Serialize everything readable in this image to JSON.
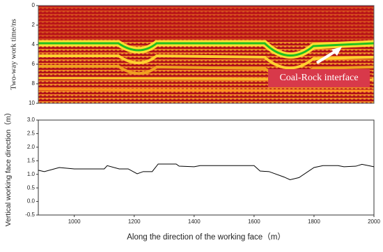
{
  "chart_data": [
    {
      "type": "radargram",
      "ylabel": "Two-way work time/ns",
      "ylim": [
        0,
        10
      ],
      "yticks": [
        0,
        2,
        4,
        6,
        8,
        10
      ],
      "y_reversed": true,
      "annotation": "Coal-Rock interface"
    },
    {
      "type": "line",
      "ylabel": "Vertical working face direction（m）",
      "xlabel": "Along the direction of the working face（m）",
      "x": [
        880,
        900,
        950,
        1000,
        1100,
        1110,
        1150,
        1180,
        1210,
        1230,
        1260,
        1280,
        1340,
        1350,
        1400,
        1420,
        1600,
        1620,
        1650,
        1700,
        1720,
        1750,
        1800,
        1830,
        1880,
        1900,
        1940,
        1960,
        2000
      ],
      "values": [
        1.15,
        1.1,
        1.25,
        1.2,
        1.2,
        1.32,
        1.2,
        1.2,
        1.02,
        1.1,
        1.1,
        1.38,
        1.38,
        1.3,
        1.28,
        1.32,
        1.32,
        1.12,
        1.1,
        0.9,
        0.8,
        0.88,
        1.25,
        1.32,
        1.32,
        1.28,
        1.3,
        1.37,
        1.28
      ],
      "color": "#000000",
      "xlim": [
        880,
        2000
      ],
      "xticks": [
        1000,
        1200,
        1400,
        1600,
        1800,
        2000
      ],
      "ylim": [
        -0.5,
        3.0
      ],
      "yticks": [
        {
          "value": -0.5,
          "label": "-0.5"
        },
        {
          "value": 0,
          "label": "0.0"
        },
        {
          "value": 0.5,
          "label": "0.5"
        },
        {
          "value": 1,
          "label": "1.0"
        },
        {
          "value": 1.5,
          "label": "1.5"
        },
        {
          "value": 2,
          "label": "2.0"
        },
        {
          "value": 2.5,
          "label": "2.5"
        },
        {
          "value": 3,
          "label": "3.0"
        }
      ]
    }
  ]
}
